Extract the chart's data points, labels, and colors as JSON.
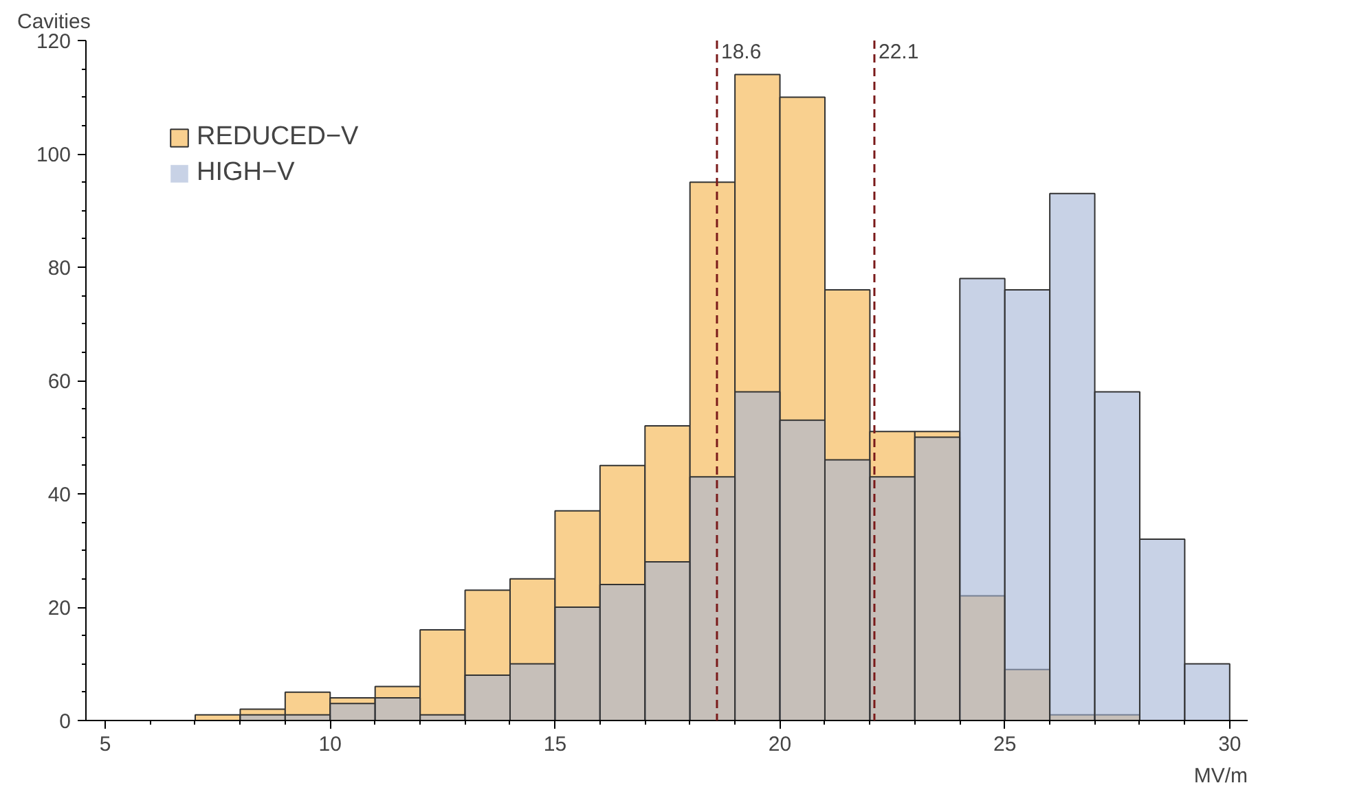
{
  "chart_data": {
    "type": "histogram",
    "xlabel": "MV/m",
    "ylabel": "Cavities",
    "bins": [
      7,
      8,
      9,
      10,
      11,
      12,
      13,
      14,
      15,
      16,
      17,
      18,
      19,
      20,
      21,
      22,
      23,
      24,
      25,
      26,
      27,
      28,
      29,
      30
    ],
    "series": [
      {
        "name": "REDUCED−V",
        "color": "#f9d08f",
        "values": [
          1,
          2,
          5,
          4,
          6,
          16,
          23,
          25,
          37,
          45,
          52,
          95,
          114,
          110,
          76,
          51,
          51,
          22,
          9,
          1,
          1,
          0,
          0
        ]
      },
      {
        "name": "HIGH−V",
        "color": "#a3b4d6",
        "values": [
          0,
          1,
          1,
          3,
          4,
          1,
          8,
          10,
          20,
          24,
          28,
          43,
          58,
          53,
          46,
          43,
          50,
          78,
          76,
          93,
          58,
          32,
          10
        ]
      }
    ],
    "xlim": [
      4.57,
      30.4
    ],
    "ylim": [
      0,
      120
    ],
    "xticks": [
      5,
      10,
      15,
      20,
      25,
      30
    ],
    "yticks": [
      0,
      20,
      40,
      60,
      80,
      100,
      120
    ],
    "ref_lines": [
      {
        "axis": "x",
        "value": 18.6,
        "label": "18.6",
        "color": "#7a1a1a",
        "line_style": "dashed"
      },
      {
        "axis": "x",
        "value": 22.1,
        "label": "22.1",
        "color": "#7a1a1a",
        "line_style": "dashed"
      }
    ],
    "grid": false,
    "legend": "top left"
  }
}
